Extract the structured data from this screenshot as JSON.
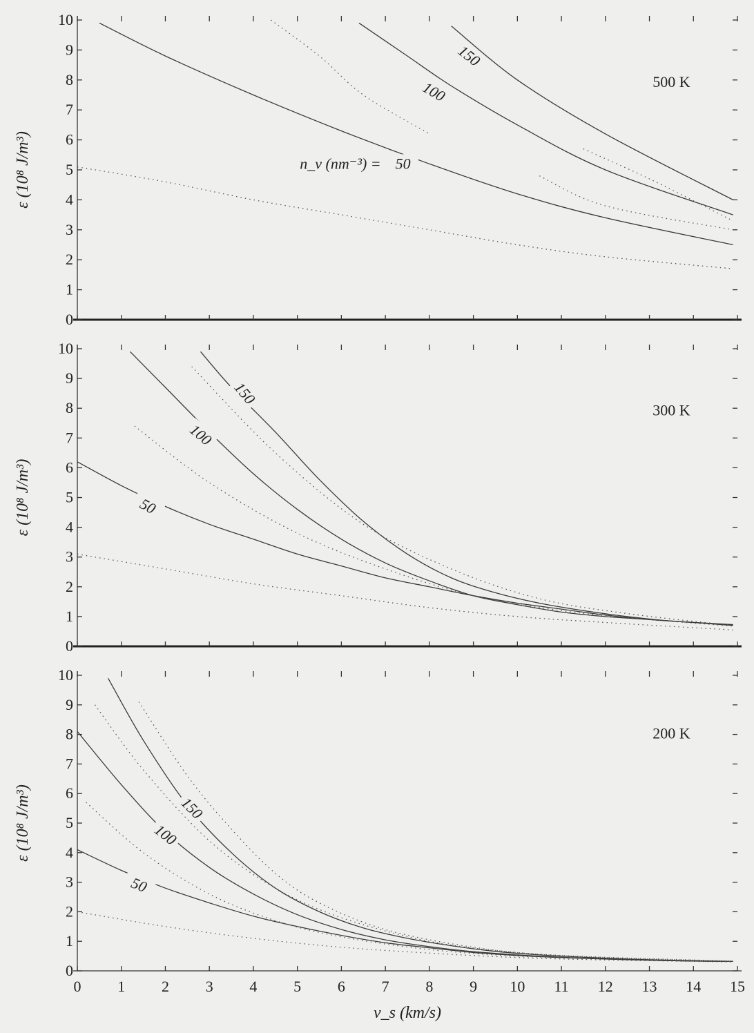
{
  "chart_data": [
    {
      "type": "line",
      "panel_label": "500 K",
      "ylabel": "ε (10⁸ J/m³)",
      "ylim": [
        0,
        10
      ],
      "xlim": [
        0,
        15
      ],
      "yticks": [
        "0",
        "1",
        "2",
        "3",
        "4",
        "5",
        "6",
        "7",
        "8",
        "9",
        "10"
      ],
      "legend_text": "n_v (nm⁻³) =",
      "series": [
        {
          "name": "50",
          "style": "solid",
          "x": [
            0.5,
            2,
            4,
            6,
            8,
            10,
            12,
            14.9
          ],
          "y": [
            9.9,
            8.8,
            7.5,
            6.3,
            5.2,
            4.2,
            3.4,
            2.5
          ]
        },
        {
          "name": "100",
          "style": "solid",
          "x": [
            6.4,
            7.5,
            8.5,
            10,
            12,
            14.9
          ],
          "y": [
            9.9,
            8.8,
            7.8,
            6.5,
            5.0,
            3.5
          ]
        },
        {
          "name": "150",
          "style": "solid",
          "x": [
            8.5,
            10,
            12,
            14.9
          ],
          "y": [
            9.8,
            8.0,
            6.2,
            4.0
          ]
        },
        {
          "style": "dotted",
          "x": [
            0,
            2,
            4,
            6,
            8,
            10,
            12,
            14.9
          ],
          "y": [
            5.1,
            4.6,
            4.0,
            3.5,
            3.0,
            2.5,
            2.1,
            1.7
          ]
        },
        {
          "style": "dotted",
          "x": [
            4.4,
            5.5,
            6.5,
            8
          ],
          "y": [
            10,
            8.8,
            7.5,
            6.2
          ]
        },
        {
          "style": "dotted",
          "x": [
            10.5,
            12,
            14.9
          ],
          "y": [
            4.8,
            3.8,
            3.0
          ]
        },
        {
          "style": "dotted",
          "x": [
            11.5,
            13,
            14.9
          ],
          "y": [
            5.7,
            4.7,
            3.3
          ]
        }
      ]
    },
    {
      "type": "line",
      "panel_label": "300 K",
      "ylabel": "ε (10⁸ J/m³)",
      "ylim": [
        0,
        10
      ],
      "xlim": [
        0,
        15
      ],
      "yticks": [
        "0",
        "1",
        "2",
        "3",
        "4",
        "5",
        "6",
        "7",
        "8",
        "9",
        "10"
      ],
      "series": [
        {
          "name": "50",
          "style": "solid",
          "x": [
            0,
            1,
            2,
            3,
            4,
            5,
            6,
            7,
            8,
            9,
            10,
            11,
            12,
            13,
            14,
            14.9
          ],
          "y": [
            6.2,
            5.4,
            4.7,
            4.1,
            3.6,
            3.1,
            2.7,
            2.3,
            2.0,
            1.7,
            1.45,
            1.25,
            1.05,
            0.9,
            0.8,
            0.7
          ]
        },
        {
          "name": "100",
          "style": "solid",
          "x": [
            1.2,
            2,
            3,
            4,
            5,
            6,
            7,
            8,
            9,
            10,
            11,
            12,
            13,
            14,
            14.9
          ],
          "y": [
            9.9,
            8.7,
            7.2,
            5.8,
            4.6,
            3.6,
            2.8,
            2.2,
            1.7,
            1.4,
            1.15,
            1.0,
            0.9,
            0.8,
            0.72
          ]
        },
        {
          "name": "150",
          "style": "solid",
          "x": [
            2.8,
            3.5,
            4.5,
            5.5,
            6.5,
            7.5,
            8.5,
            9.5,
            10.5,
            11.5,
            12.5,
            13.5,
            14.9
          ],
          "y": [
            9.9,
            8.7,
            7.2,
            5.6,
            4.2,
            3.1,
            2.3,
            1.8,
            1.45,
            1.2,
            1.0,
            0.85,
            0.73
          ]
        },
        {
          "style": "dotted",
          "x": [
            0,
            2,
            4,
            6,
            8,
            10,
            12,
            14.9
          ],
          "y": [
            3.1,
            2.6,
            2.1,
            1.7,
            1.3,
            1.0,
            0.8,
            0.55
          ]
        },
        {
          "style": "dotted",
          "x": [
            1.3,
            3,
            5,
            7,
            9,
            11,
            13,
            14.9
          ],
          "y": [
            7.4,
            5.5,
            3.8,
            2.6,
            1.7,
            1.2,
            0.9,
            0.68
          ]
        },
        {
          "style": "dotted",
          "x": [
            2.6,
            4.5,
            6.5,
            8.5,
            10.5,
            12.5,
            14.9
          ],
          "y": [
            9.4,
            6.5,
            4.1,
            2.6,
            1.6,
            1.1,
            0.7
          ]
        }
      ]
    },
    {
      "type": "line",
      "panel_label": "200 K",
      "ylabel": "ε (10⁸ J/m³)",
      "xlabel": "v_s (km/s)",
      "ylim": [
        0,
        10
      ],
      "xlim": [
        0,
        15
      ],
      "xticks": [
        "0",
        "1",
        "2",
        "3",
        "4",
        "5",
        "6",
        "7",
        "8",
        "9",
        "10",
        "11",
        "12",
        "13",
        "14",
        "15"
      ],
      "yticks": [
        "0",
        "1",
        "2",
        "3",
        "4",
        "5",
        "6",
        "7",
        "8",
        "9",
        "10"
      ],
      "series": [
        {
          "name": "50",
          "style": "solid",
          "x": [
            0,
            1,
            2,
            3,
            4,
            5,
            6,
            7,
            8,
            9,
            10,
            11,
            12,
            13,
            14,
            14.9
          ],
          "y": [
            4.1,
            3.4,
            2.8,
            2.3,
            1.85,
            1.5,
            1.2,
            0.95,
            0.78,
            0.62,
            0.52,
            0.45,
            0.4,
            0.36,
            0.33,
            0.32
          ]
        },
        {
          "name": "100",
          "style": "solid",
          "x": [
            0,
            1,
            2,
            3,
            4,
            5,
            6,
            7,
            8,
            9,
            10,
            11,
            12,
            13,
            14,
            14.9
          ],
          "y": [
            8.1,
            6.3,
            4.7,
            3.5,
            2.6,
            1.9,
            1.4,
            1.05,
            0.82,
            0.65,
            0.54,
            0.46,
            0.4,
            0.36,
            0.33,
            0.32
          ]
        },
        {
          "name": "150",
          "style": "solid",
          "x": [
            0.7,
            1.5,
            2.5,
            3.5,
            4.5,
            5.5,
            6.5,
            7.5,
            8.5,
            9.5,
            10.5,
            11.5,
            12.5,
            13.5,
            14.9
          ],
          "y": [
            9.9,
            7.8,
            5.6,
            4.0,
            2.8,
            2.0,
            1.45,
            1.1,
            0.85,
            0.66,
            0.54,
            0.46,
            0.4,
            0.36,
            0.32
          ]
        },
        {
          "style": "dotted",
          "x": [
            0,
            2,
            4,
            6,
            8,
            10,
            12,
            14.9
          ],
          "y": [
            2.0,
            1.5,
            1.1,
            0.8,
            0.6,
            0.45,
            0.37,
            0.3
          ]
        },
        {
          "style": "dotted",
          "x": [
            0.2,
            1.5,
            3,
            4.5,
            6,
            8,
            10,
            12,
            14.9
          ],
          "y": [
            5.7,
            4.0,
            2.6,
            1.7,
            1.15,
            0.72,
            0.5,
            0.4,
            0.32
          ]
        },
        {
          "style": "dotted",
          "x": [
            0.4,
            1.5,
            3,
            4.5,
            6,
            8,
            10,
            12,
            14.9
          ],
          "y": [
            9.0,
            6.8,
            4.4,
            2.8,
            1.8,
            1.0,
            0.62,
            0.45,
            0.33
          ]
        },
        {
          "style": "dotted",
          "x": [
            1.4,
            2.5,
            3.5,
            4.5,
            5.5,
            7,
            9,
            11,
            14.9
          ],
          "y": [
            9.1,
            6.6,
            4.8,
            3.3,
            2.3,
            1.4,
            0.8,
            0.52,
            0.33
          ]
        }
      ]
    }
  ]
}
